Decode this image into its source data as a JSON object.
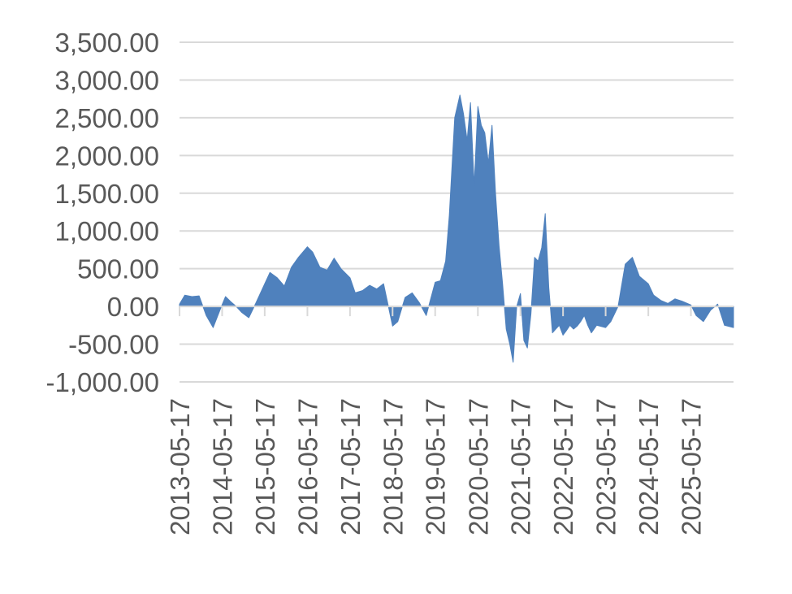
{
  "chart_data": {
    "type": "area",
    "title": "",
    "xlabel": "",
    "ylabel": "",
    "ylim": [
      -1000,
      3500
    ],
    "xlim": [
      "2013-05-17",
      "2026-05-17"
    ],
    "grid": true,
    "color": "#4f81bd",
    "y_tick_labels": [
      "-1,000.00",
      "-500.00",
      "0.00",
      "500.00",
      "1,000.00",
      "1,500.00",
      "2,000.00",
      "2,500.00",
      "3,000.00",
      "3,500.00"
    ],
    "y_tick_values": [
      -1000,
      -500,
      0,
      500,
      1000,
      1500,
      2000,
      2500,
      3000,
      3500
    ],
    "x_tick_labels": [
      "2013-05-17",
      "2014-05-17",
      "2015-05-17",
      "2016-05-17",
      "2017-05-17",
      "2018-05-17",
      "2019-05-17",
      "2020-05-17",
      "2021-05-17",
      "2022-05-17",
      "2023-05-17",
      "2024-05-17",
      "2025-05-17"
    ],
    "x": [
      "2013-05-17",
      "2013-07-01",
      "2013-09-01",
      "2013-11-01",
      "2014-01-01",
      "2014-03-01",
      "2014-05-01",
      "2014-06-15",
      "2014-08-01",
      "2014-09-15",
      "2014-11-01",
      "2015-01-01",
      "2015-03-01",
      "2015-05-17",
      "2015-07-01",
      "2015-09-01",
      "2015-11-01",
      "2016-01-01",
      "2016-03-01",
      "2016-05-17",
      "2016-07-01",
      "2016-09-01",
      "2016-11-01",
      "2017-01-01",
      "2017-03-01",
      "2017-05-17",
      "2017-07-01",
      "2017-09-01",
      "2017-11-01",
      "2018-01-01",
      "2018-03-01",
      "2018-05-17",
      "2018-07-01",
      "2018-09-01",
      "2018-11-01",
      "2019-01-01",
      "2019-03-01",
      "2019-05-17",
      "2019-07-01",
      "2019-08-15",
      "2019-09-15",
      "2019-11-01",
      "2019-12-15",
      "2020-01-15",
      "2020-02-15",
      "2020-03-15",
      "2020-04-15",
      "2020-05-17",
      "2020-06-15",
      "2020-07-15",
      "2020-08-15",
      "2020-09-15",
      "2020-10-15",
      "2020-11-15",
      "2020-12-15",
      "2021-01-15",
      "2021-02-15",
      "2021-03-15",
      "2021-04-15",
      "2021-05-17",
      "2021-06-15",
      "2021-07-15",
      "2021-08-15",
      "2021-09-15",
      "2021-10-15",
      "2021-11-15",
      "2021-12-15",
      "2022-01-15",
      "2022-02-15",
      "2022-03-15",
      "2022-04-15",
      "2022-05-17",
      "2022-06-15",
      "2022-07-15",
      "2022-08-15",
      "2022-09-15",
      "2022-10-15",
      "2022-11-15",
      "2022-12-15",
      "2023-01-15",
      "2023-03-01",
      "2023-05-17",
      "2023-07-01",
      "2023-09-01",
      "2023-11-01",
      "2024-01-01",
      "2024-03-01",
      "2024-05-17",
      "2024-07-01",
      "2024-09-01",
      "2024-11-01",
      "2025-01-01",
      "2025-03-01",
      "2025-05-17",
      "2025-07-01",
      "2025-09-01",
      "2025-11-01",
      "2026-01-01",
      "2026-03-01",
      "2026-05-17"
    ],
    "values": [
      30,
      150,
      130,
      140,
      -120,
      -280,
      -40,
      130,
      60,
      0,
      -80,
      -150,
      40,
      300,
      450,
      380,
      270,
      520,
      650,
      790,
      720,
      520,
      480,
      640,
      500,
      380,
      180,
      210,
      280,
      230,
      300,
      -260,
      -200,
      120,
      180,
      50,
      -120,
      320,
      340,
      600,
      1200,
      2500,
      2800,
      2550,
      2200,
      2700,
      1600,
      2650,
      2400,
      2300,
      1900,
      2400,
      1500,
      800,
      300,
      -300,
      -500,
      -740,
      0,
      170,
      -450,
      -550,
      -100,
      650,
      600,
      780,
      1230,
      250,
      -350,
      -300,
      -250,
      -380,
      -320,
      -250,
      -300,
      -260,
      -200,
      -120,
      -250,
      -350,
      -250,
      -280,
      -200,
      0,
      560,
      650,
      400,
      300,
      150,
      80,
      40,
      100,
      70,
      20,
      -120,
      -200,
      -50,
      30,
      -250,
      -280
    ]
  }
}
